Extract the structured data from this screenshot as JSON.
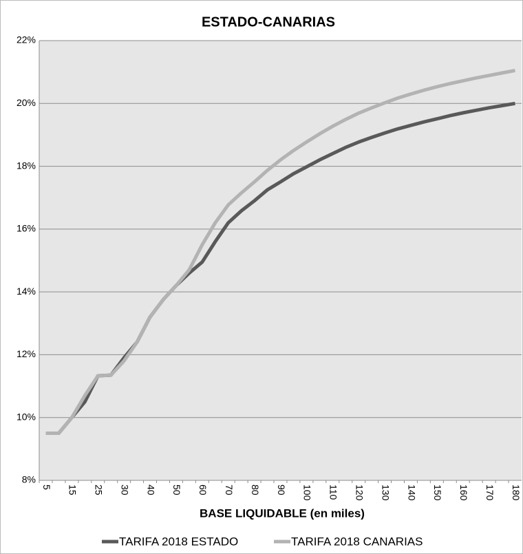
{
  "chart_data": {
    "type": "line",
    "title": "ESTADO-CANARIAS",
    "x_label": "BASE LIQUIDABLE (en miles)",
    "categories": [
      "5",
      null,
      "15",
      null,
      "25",
      null,
      "30",
      null,
      "40",
      null,
      "50",
      null,
      "60",
      null,
      "70",
      null,
      "80",
      null,
      "90",
      null,
      "100",
      null,
      "110",
      null,
      "120",
      null,
      "130",
      null,
      "140",
      null,
      "150",
      null,
      "160",
      null,
      "170",
      null,
      "180"
    ],
    "series": [
      {
        "name": "TARIFA 2018 ESTADO",
        "color": "#595959",
        "values": [
          9.5,
          9.5,
          10.0,
          10.5,
          11.33,
          11.35,
          11.9,
          12.4,
          13.2,
          13.75,
          14.2,
          14.6,
          14.95,
          15.6,
          16.2,
          16.58,
          16.9,
          17.25,
          17.5,
          17.76,
          17.98,
          18.2,
          18.4,
          18.6,
          18.77,
          18.92,
          19.06,
          19.19,
          19.3,
          19.41,
          19.51,
          19.61,
          19.7,
          19.78,
          19.86,
          19.93,
          20.0
        ]
      },
      {
        "name": "TARIFA 2018 CANARIAS",
        "color": "#b3b3b3",
        "values": [
          9.5,
          9.5,
          10.0,
          10.7,
          11.33,
          11.35,
          11.8,
          12.4,
          13.2,
          13.75,
          14.2,
          14.7,
          15.5,
          16.2,
          16.77,
          17.15,
          17.5,
          17.87,
          18.2,
          18.5,
          18.77,
          19.03,
          19.27,
          19.49,
          19.69,
          19.86,
          20.02,
          20.17,
          20.3,
          20.42,
          20.53,
          20.63,
          20.72,
          20.81,
          20.89,
          20.97,
          21.05
        ]
      }
    ],
    "ylim": [
      8,
      22
    ],
    "yticks": [
      {
        "value": 8,
        "label": "8%"
      },
      {
        "value": 10,
        "label": "10%"
      },
      {
        "value": 12,
        "label": "12%"
      },
      {
        "value": 14,
        "label": "14%"
      },
      {
        "value": 16,
        "label": "16%"
      },
      {
        "value": 18,
        "label": "18%"
      },
      {
        "value": 20,
        "label": "20%"
      },
      {
        "value": 22,
        "label": "22%"
      }
    ],
    "grid": true,
    "legend": "bottom"
  }
}
